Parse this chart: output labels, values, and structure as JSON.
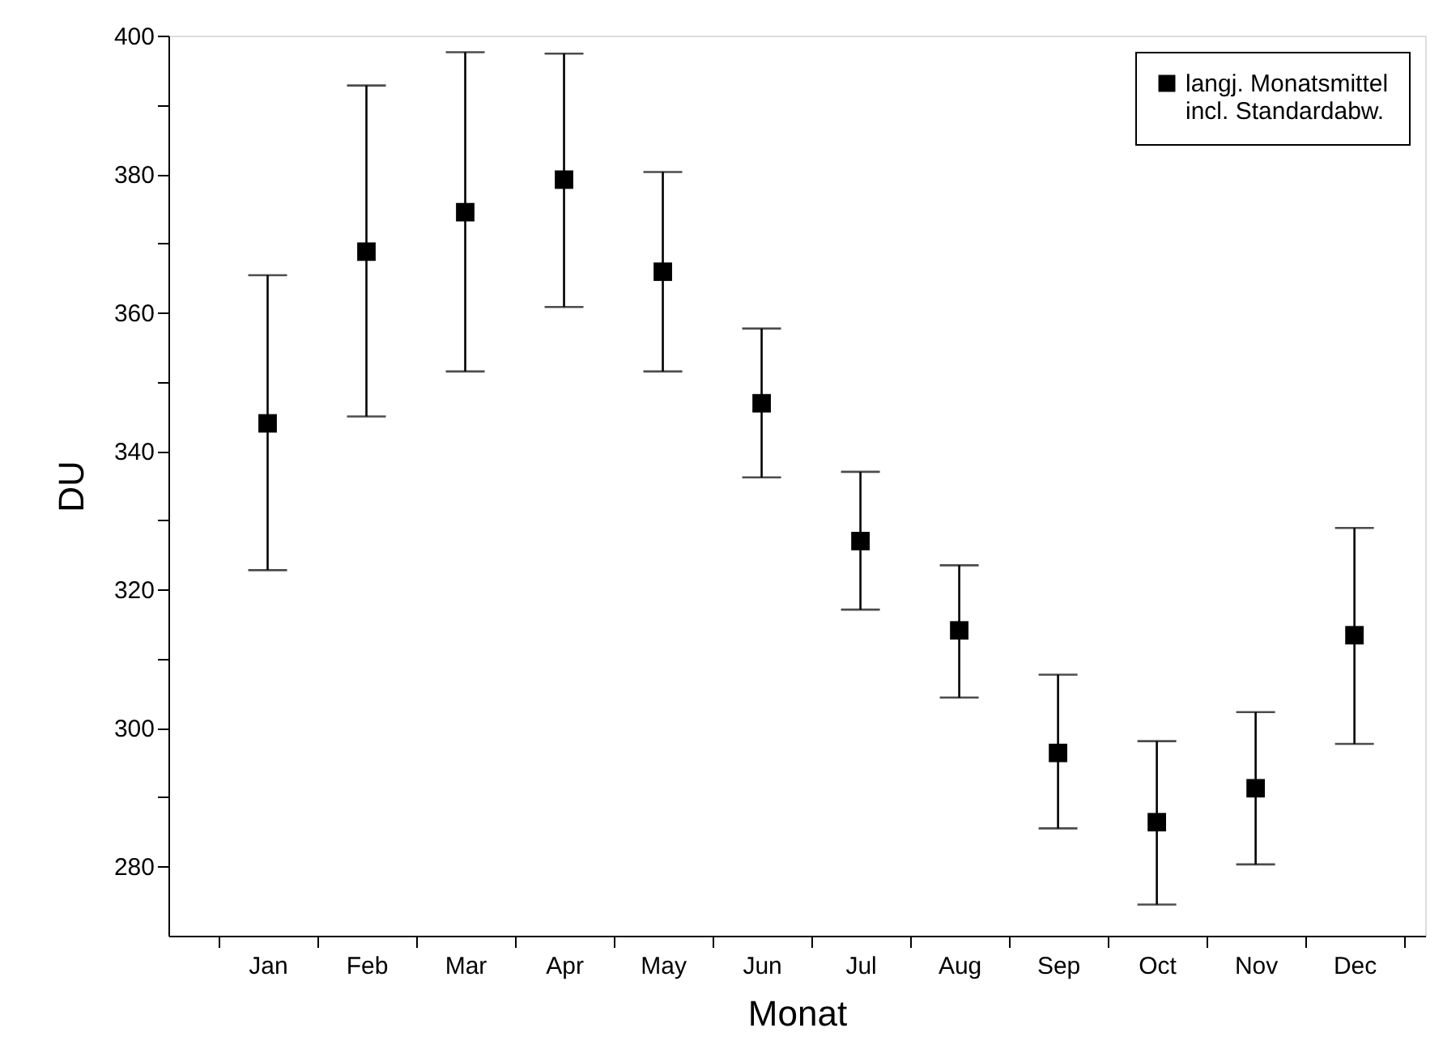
{
  "chart_data": {
    "type": "scatter",
    "xlabel": "Monat",
    "ylabel": "DU",
    "categories": [
      "Jan",
      "Feb",
      "Mar",
      "Apr",
      "May",
      "Jun",
      "Jul",
      "Aug",
      "Sep",
      "Oct",
      "Nov",
      "Dec"
    ],
    "series": [
      {
        "name": "langj. Monatsmittel\nincl. Standardabw.",
        "color": "#000000",
        "values": [
          344.0,
          368.8,
          374.5,
          379.2,
          365.9,
          346.9,
          327.0,
          314.1,
          296.4,
          286.4,
          291.3,
          313.4
        ],
        "errors": [
          [
            322.8,
            365.4
          ],
          [
            345.0,
            392.8
          ],
          [
            351.5,
            397.6
          ],
          [
            360.8,
            397.4
          ],
          [
            351.5,
            380.3
          ],
          [
            336.2,
            357.7
          ],
          [
            317.1,
            337.0
          ],
          [
            304.4,
            323.5
          ],
          [
            285.5,
            307.7
          ],
          [
            274.5,
            298.1
          ],
          [
            280.3,
            302.3
          ],
          [
            297.7,
            328.9
          ]
        ]
      }
    ],
    "ylim": [
      270,
      400
    ],
    "yticks": [
      280,
      {
        "value": 290,
        "label": null
      },
      300,
      {
        "value": 310,
        "label": null
      },
      320,
      {
        "value": 330,
        "label": null
      },
      340,
      {
        "value": 350,
        "label": null
      },
      360,
      {
        "value": 370,
        "label": null
      },
      380,
      {
        "value": 390,
        "label": null
      },
      400
    ],
    "marker": "square",
    "grid": false,
    "legend": "top right"
  }
}
